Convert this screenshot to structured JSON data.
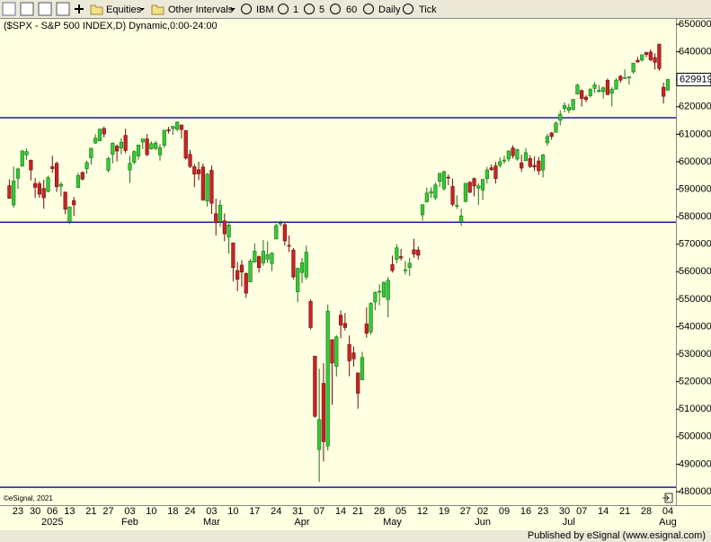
{
  "toolbar": {
    "items": [
      "Equities",
      "Other Intervals",
      "IBM",
      "1",
      "5",
      "60",
      "Daily",
      "Tick"
    ]
  },
  "footer": "Published by eSignal (www.esignal.com)",
  "chart_data": {
    "type": "candlestick",
    "title": "($SPX - S&P 500 INDEX,D) Dynamic,0:00-24:00",
    "copyright": "©eSignal, 2021",
    "categories": [
      null,
      null,
      "23",
      null,
      null,
      null,
      "30",
      null,
      null,
      null,
      "06",
      null,
      null,
      null,
      "13",
      null,
      null,
      null,
      null,
      "21",
      null,
      null,
      null,
      "27",
      null,
      null,
      null,
      null,
      "03",
      null,
      null,
      null,
      null,
      "10",
      null,
      null,
      null,
      null,
      "18",
      null,
      null,
      null,
      "24",
      null,
      null,
      null,
      null,
      "03",
      null,
      null,
      null,
      null,
      "10",
      null,
      null,
      null,
      null,
      "17",
      null,
      null,
      null,
      null,
      "24",
      null,
      null,
      null,
      null,
      "31",
      null,
      null,
      null,
      null,
      "07",
      null,
      null,
      null,
      null,
      "14",
      null,
      null,
      null,
      "21",
      null,
      null,
      null,
      null,
      "28",
      null,
      null,
      null,
      null,
      "05",
      null,
      null,
      null,
      null,
      "12",
      null,
      null,
      null,
      null,
      "19",
      null,
      null,
      null,
      null,
      "27",
      null,
      null,
      null,
      "02",
      null,
      null,
      null,
      null,
      "09",
      null,
      null,
      null,
      null,
      "16",
      null,
      null,
      null,
      "23",
      null,
      null,
      null,
      null,
      "30",
      null,
      null,
      null,
      "07",
      null,
      null,
      null,
      null,
      "14",
      null,
      null,
      null,
      null,
      "21",
      null,
      null,
      null,
      null,
      "28",
      null,
      null,
      null,
      null,
      "04"
    ],
    "months": [
      null,
      null,
      null,
      null,
      null,
      null,
      null,
      null,
      null,
      null,
      "2025",
      null,
      null,
      null,
      null,
      null,
      null,
      null,
      null,
      null,
      null,
      null,
      null,
      null,
      null,
      null,
      null,
      null,
      "Feb",
      null,
      null,
      null,
      null,
      null,
      null,
      null,
      null,
      null,
      null,
      null,
      null,
      null,
      null,
      null,
      null,
      null,
      null,
      "Mar",
      null,
      null,
      null,
      null,
      null,
      null,
      null,
      null,
      null,
      null,
      null,
      null,
      null,
      null,
      null,
      null,
      null,
      null,
      null,
      null,
      "Apr",
      null,
      null,
      null,
      null,
      null,
      null,
      null,
      null,
      null,
      null,
      null,
      null,
      null,
      null,
      null,
      null,
      null,
      null,
      null,
      null,
      "May",
      null,
      null,
      null,
      null,
      null,
      null,
      null,
      null,
      null,
      null,
      null,
      null,
      null,
      null,
      null,
      null,
      null,
      null,
      null,
      null,
      "Jun",
      null,
      null,
      null,
      null,
      null,
      null,
      null,
      null,
      null,
      null,
      null,
      null,
      null,
      null,
      null,
      null,
      null,
      null,
      null,
      "Jul",
      null,
      null,
      null,
      null,
      null,
      null,
      null,
      null,
      null,
      null,
      null,
      null,
      null,
      null,
      null,
      null,
      null,
      null,
      null,
      null,
      null,
      null,
      "Aug"
    ],
    "open": [
      591300,
      584300,
      594000,
      598400,
      602500,
      600600,
      592100,
      592000,
      590300,
      589200,
      598200,
      599400,
      591100,
      589000,
      578200,
      585900,
      590600,
      596100,
      597500,
      601400,
      606800,
      607600,
      612100,
      596900,
      602700,
      605700,
      605000,
      609600,
      597000,
      599800,
      602100,
      607200,
      608300,
      604700,
      604900,
      602500,
      606000,
      611600,
      612100,
      611800,
      613400,
      611400,
      602700,
      598200,
      597100,
      598100,
      585700,
      596900,
      581100,
      578200,
      578500,
      572600,
      570500,
      560400,
      562400,
      559400,
      556300,
      563500,
      565500,
      563200,
      564600,
      563000,
      571900,
      577500,
      577100,
      569600,
      567900,
      552700,
      559700,
      558100,
      549200,
      529300,
      495300,
      519400,
      496600,
      535300,
      525600,
      544200,
      541200,
      533500,
      530500,
      523200,
      520700,
      541000,
      538100,
      549000,
      552900,
      550800,
      549900,
      562600,
      564500,
      565500,
      560500,
      561500,
      568000,
      567900,
      580700,
      585400,
      588600,
      586900,
      592900,
      590200,
      594400,
      591000,
      584100,
      578100,
      585500,
      592500,
      593900,
      590400,
      589700,
      593900,
      597800,
      598500,
      598700,
      600400,
      601000,
      605000,
      601000,
      599600,
      600400,
      601200,
      598700,
      600300,
      597000,
      606900,
      610500,
      610700,
      615100,
      619400,
      618700,
      619100,
      624600,
      625900,
      623500,
      624000,
      626700,
      625500,
      625500,
      629600,
      624900,
      626400,
      631100,
      630400,
      630700,
      632700,
      636900,
      637000,
      639700,
      639900,
      637900,
      642800,
      627100,
      626000
    ],
    "high": [
      593600,
      598200,
      597800,
      604000,
      604900,
      600700,
      594100,
      592900,
      593500,
      594900,
      602200,
      600100,
      592700,
      589000,
      583700,
      587200,
      596000,
      596500,
      600400,
      605100,
      610000,
      611900,
      612800,
      601800,
      607000,
      606300,
      608600,
      612000,
      602200,
      604200,
      606200,
      608400,
      610100,
      607400,
      607600,
      606400,
      611600,
      612700,
      612900,
      614700,
      613400,
      611400,
      604300,
      599200,
      600000,
      599400,
      595900,
      598600,
      586600,
      586100,
      581200,
      578300,
      570500,
      563600,
      564200,
      559700,
      564600,
      570300,
      565900,
      571500,
      571100,
      567100,
      577500,
      578600,
      578300,
      573200,
      568600,
      561500,
      565000,
      569500,
      550000,
      529300,
      524700,
      526700,
      548100,
      535300,
      536900,
      545900,
      545000,
      536800,
      532800,
      523200,
      530900,
      547000,
      548900,
      552800,
      555400,
      556500,
      558100,
      565900,
      570000,
      568300,
      563900,
      565100,
      572000,
      569200,
      584500,
      590600,
      590700,
      592500,
      595800,
      596800,
      595400,
      593900,
      587800,
      582900,
      592200,
      593000,
      594300,
      592200,
      593700,
      598100,
      599000,
      599900,
      601600,
      602200,
      604300,
      606000,
      604600,
      602600,
      605000,
      602400,
      601900,
      601800,
      602800,
      610100,
      610800,
      614600,
      618700,
      621600,
      621100,
      622700,
      628400,
      626300,
      624200,
      626900,
      629000,
      627900,
      627300,
      630300,
      627100,
      630400,
      631600,
      633600,
      631000,
      635900,
      638100,
      639000,
      640100,
      640900,
      639400,
      642800,
      628800,
      630200
    ],
    "low": [
      586600,
      583300,
      590200,
      598300,
      600700,
      593200,
      586900,
      586900,
      582900,
      588800,
      596000,
      589000,
      587400,
      580900,
      577300,
      580300,
      590400,
      593200,
      595600,
      599000,
      606500,
      607500,
      608800,
      596200,
      599400,
      600100,
      602700,
      603100,
      592300,
      599100,
      600700,
      604600,
      602000,
      604400,
      604200,
      600400,
      605100,
      610300,
      609900,
      611100,
      608500,
      600800,
      597700,
      590800,
      593300,
      585800,
      583700,
      581000,
      573200,
      576300,
      571100,
      566600,
      556500,
      552900,
      554600,
      550500,
      556300,
      563300,
      559700,
      562200,
      563200,
      560300,
      571900,
      576500,
      569500,
      567100,
      557200,
      548900,
      555800,
      557100,
      539000,
      506900,
      483500,
      491000,
      495000,
      511600,
      521900,
      535800,
      538600,
      522000,
      525500,
      510200,
      520700,
      536000,
      537100,
      546000,
      547800,
      550600,
      543400,
      559700,
      563100,
      564100,
      559000,
      558500,
      565100,
      564400,
      578600,
      585400,
      586800,
      586100,
      590800,
      589500,
      591500,
      583800,
      582900,
      576700,
      585400,
      588600,
      587400,
      584300,
      586100,
      592100,
      596700,
      592100,
      597900,
      599300,
      600000,
      601200,
      600400,
      596400,
      600400,
      597700,
      596600,
      595200,
      594300,
      605800,
      608000,
      610600,
      613200,
      618000,
      617700,
      618600,
      624500,
      620100,
      621700,
      623400,
      625100,
      625200,
      623000,
      624300,
      620100,
      626400,
      628700,
      630300,
      628100,
      632000,
      636000,
      636400,
      638000,
      636500,
      633500,
      633100,
      621200,
      626000
    ],
    "close": [
      586700,
      593000,
      597400,
      604000,
      603700,
      597000,
      590700,
      588200,
      586900,
      594200,
      597500,
      590900,
      591800,
      582700,
      583600,
      584300,
      595000,
      593700,
      599700,
      604900,
      608600,
      611900,
      610100,
      601200,
      606800,
      603900,
      607100,
      604100,
      599400,
      603700,
      606100,
      608300,
      602600,
      606600,
      606800,
      605100,
      611500,
      611400,
      612900,
      614400,
      611700,
      601300,
      598300,
      595500,
      595600,
      586100,
      595500,
      584900,
      577800,
      584200,
      573800,
      577000,
      561500,
      557200,
      559900,
      552200,
      563900,
      567500,
      561500,
      567500,
      566200,
      566800,
      576800,
      577700,
      571200,
      569300,
      558100,
      561200,
      563300,
      567100,
      539700,
      507400,
      506200,
      498200,
      545700,
      526800,
      536300,
      540600,
      539700,
      527600,
      528300,
      515800,
      528800,
      537600,
      548500,
      552500,
      552900,
      556100,
      556900,
      560400,
      568700,
      565000,
      560700,
      563100,
      566400,
      566000,
      584400,
      588600,
      589200,
      591600,
      595800,
      596400,
      594100,
      584500,
      584200,
      580300,
      592200,
      588900,
      591200,
      591200,
      593600,
      597000,
      597100,
      593900,
      600000,
      600600,
      603900,
      602200,
      604500,
      597700,
      603300,
      598300,
      598100,
      596700,
      602500,
      609200,
      609200,
      614100,
      617300,
      620500,
      619800,
      622700,
      627900,
      623000,
      622600,
      626300,
      628000,
      626000,
      626900,
      624400,
      626400,
      629700,
      629700,
      630600,
      630900,
      635900,
      636300,
      638900,
      639000,
      637100,
      636200,
      633900,
      623800,
      629919
    ],
    "up_color": "#33cc33",
    "down_color": "#cc2222",
    "last_value": 629919,
    "hlines": [
      616000,
      578000,
      481600
    ],
    "hline_color": "#1c1c9c",
    "ylim": [
      475100,
      652300
    ],
    "yticks": [
      480000,
      490000,
      500000,
      510000,
      520000,
      530000,
      540000,
      550000,
      560000,
      570000,
      580000,
      590000,
      600000,
      610000,
      620000,
      630000,
      640000,
      650000
    ]
  }
}
